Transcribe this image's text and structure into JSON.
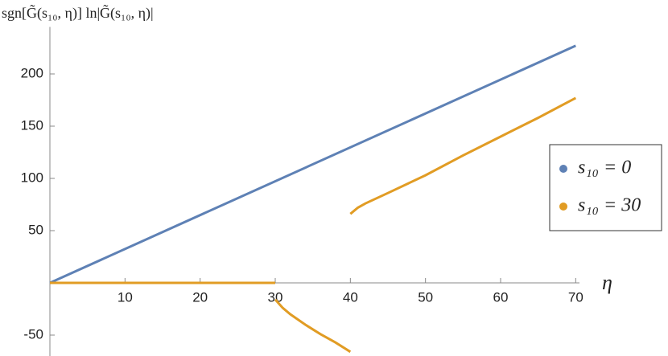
{
  "chart_data": {
    "type": "line",
    "title": "sgn[G̃(s₁₀, η)] ln|G̃(s₁₀, η)|",
    "x_label": "η",
    "xlim": [
      0,
      70.5
    ],
    "ylim": [
      -70,
      245
    ],
    "xticks": [
      10,
      20,
      30,
      40,
      50,
      60,
      70
    ],
    "yticks": [
      -50,
      50,
      100,
      150,
      200
    ],
    "legend_position": "right",
    "series": [
      {
        "name": "s₁₀ = 0",
        "color": "#5e81b5",
        "x": [
          0,
          70
        ],
        "values": [
          0,
          227
        ]
      },
      {
        "name": "s₁₀ = 30",
        "color": "#e19c24",
        "x": [
          0,
          30,
          null,
          30,
          31,
          32,
          34,
          36,
          38,
          40,
          null,
          40,
          41,
          42,
          45,
          50,
          55,
          60,
          65,
          70
        ],
        "values": [
          0,
          0,
          null,
          -16,
          -24,
          -30,
          -40,
          -49,
          -57,
          -66,
          null,
          66,
          72,
          76,
          86,
          103,
          122,
          140,
          158,
          177
        ]
      }
    ]
  }
}
